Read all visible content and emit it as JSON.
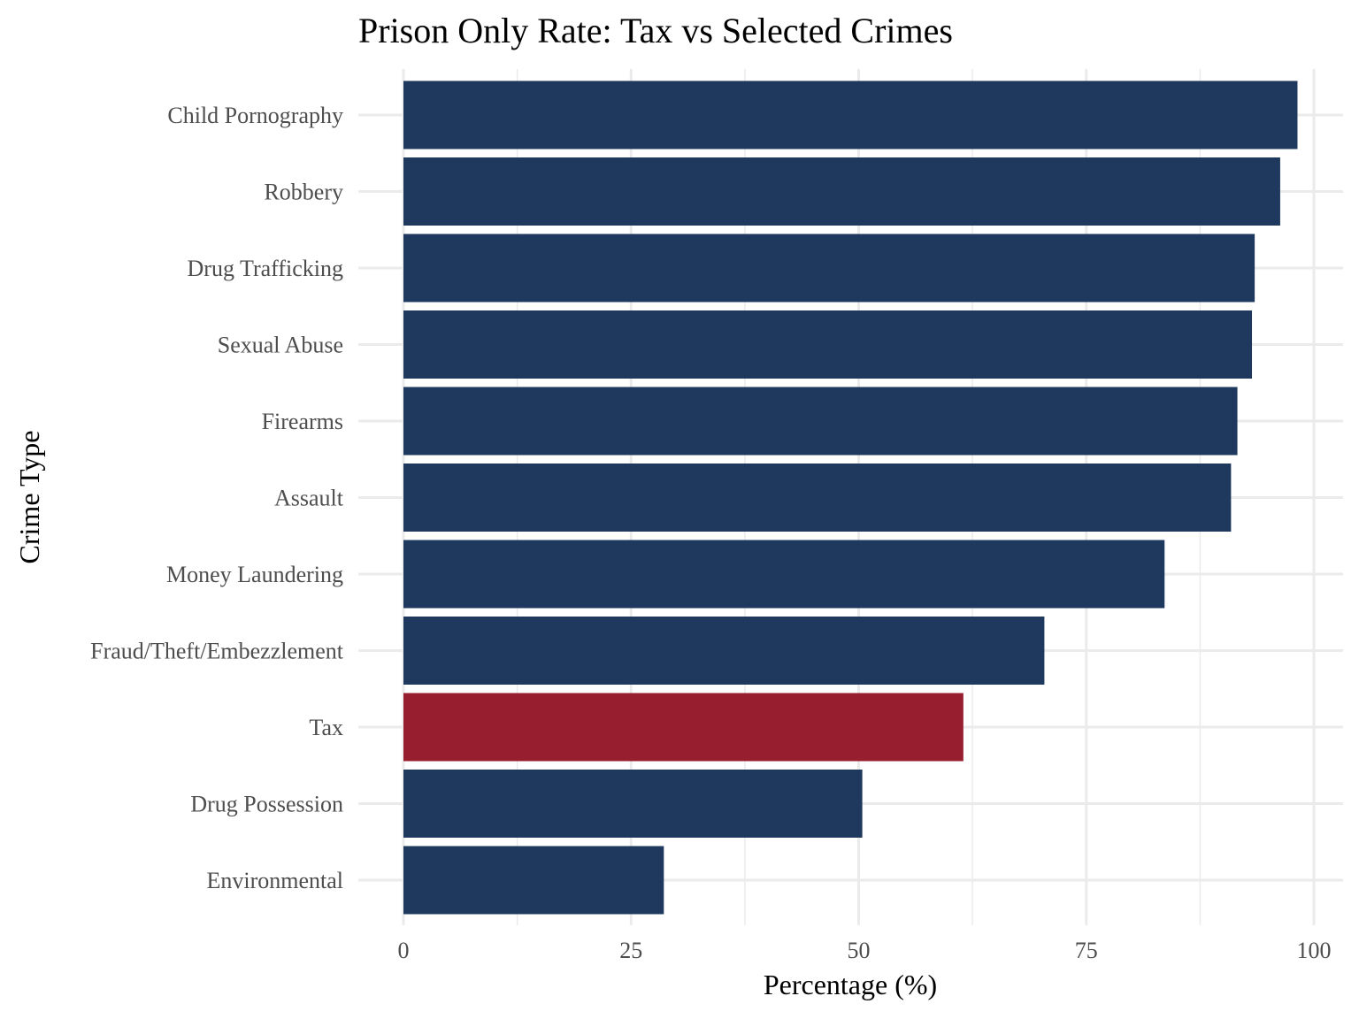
{
  "chart_data": {
    "type": "bar",
    "orientation": "horizontal",
    "title": "Prison Only Rate: Tax vs Selected Crimes",
    "xlabel": "Percentage (%)",
    "ylabel": "Crime Type",
    "xlim": [
      0,
      100
    ],
    "x_ticks": [
      0,
      25,
      50,
      75,
      100
    ],
    "x_tick_labels": [
      "0",
      "25",
      "50",
      "75",
      "100"
    ],
    "grid": true,
    "legend": "none",
    "default_color": "#1f385e",
    "highlight_color": "#961e2e",
    "highlight_category": "Tax",
    "categories": [
      "Child Pornography",
      "Robbery",
      "Drug Trafficking",
      "Sexual Abuse",
      "Firearms",
      "Assault",
      "Money Laundering",
      "Fraud/Theft/Embezzlement",
      "Tax",
      "Drug Possession",
      "Environmental"
    ],
    "values": [
      98.2,
      96.3,
      93.5,
      93.2,
      91.6,
      90.9,
      83.6,
      70.4,
      61.5,
      50.4,
      28.6
    ]
  }
}
